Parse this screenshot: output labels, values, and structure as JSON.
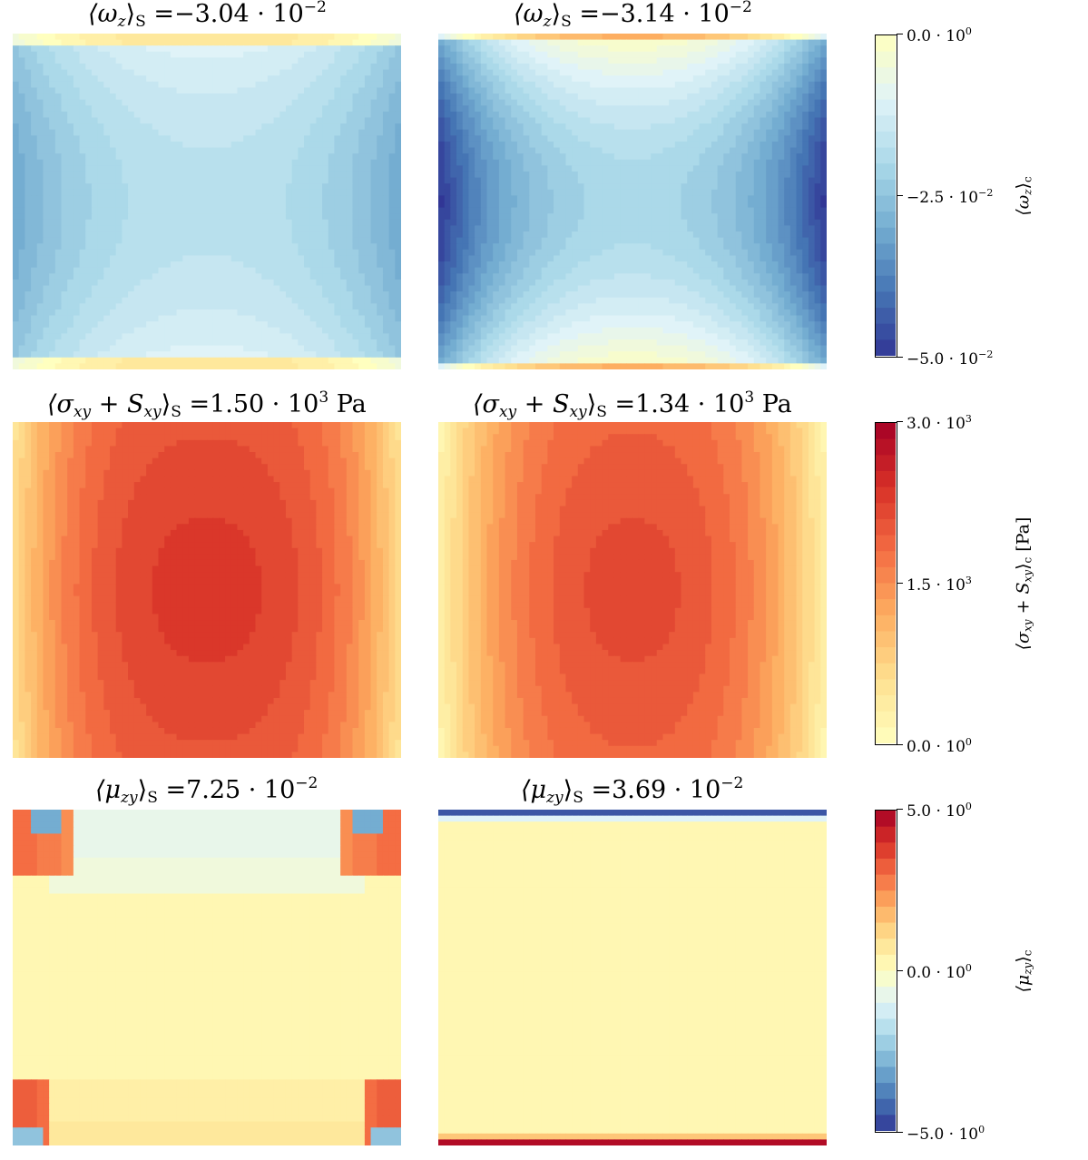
{
  "chart_data": [
    {
      "type": "heatmap",
      "row": 1,
      "panels": [
        {
          "title_quantity": "⟨ω",
          "title_sub": "z",
          "title_close": "⟩",
          "title_S": "S",
          "title_value": " =−3.04 · 10",
          "title_exp": "−2",
          "title_unit": "",
          "mean": -0.0304,
          "pattern": "vort-left"
        },
        {
          "title_quantity": "⟨ω",
          "title_sub": "z",
          "title_close": "⟩",
          "title_S": "S",
          "title_value": " =−3.14 · 10",
          "title_exp": "−2",
          "title_unit": "",
          "mean": -0.0314,
          "pattern": "vort-right"
        }
      ],
      "colorbar": {
        "label_quantity": "⟨ω",
        "label_sub": "z",
        "label_close": "⟩",
        "label_c": "c",
        "label_unit": "",
        "ticks": [
          {
            "mant": "0.0 · 10",
            "exp": "0",
            "value": 0.0
          },
          {
            "mant": "−2.5 · 10",
            "exp": "−2",
            "value": -0.025
          },
          {
            "mant": "−5.0 · 10",
            "exp": "−2",
            "value": -0.05
          }
        ],
        "range": [
          -0.05,
          0.0
        ],
        "colormap": "RdYlBu_r (lower half)"
      }
    },
    {
      "type": "heatmap",
      "row": 2,
      "panels": [
        {
          "title_quantity": "⟨σ",
          "title_sub": "xy",
          "title_plus": " + S",
          "title_sub2": "xy",
          "title_close": "⟩",
          "title_S": "S",
          "title_value": " =1.50 · 10",
          "title_exp": "3",
          "title_unit": " Pa",
          "mean": 1500,
          "pattern": "stress-left"
        },
        {
          "title_quantity": "⟨σ",
          "title_sub": "xy",
          "title_plus": " + S",
          "title_sub2": "xy",
          "title_close": "⟩",
          "title_S": "S",
          "title_value": " =1.34 · 10",
          "title_exp": "3",
          "title_unit": " Pa",
          "mean": 1340,
          "pattern": "stress-right"
        }
      ],
      "colorbar": {
        "label_quantity": "⟨σ",
        "label_sub": "xy",
        "label_plus": " + S",
        "label_sub2": "xy",
        "label_close": "⟩",
        "label_c": "c",
        "label_unit": " [Pa]",
        "ticks": [
          {
            "mant": "3.0 · 10",
            "exp": "3",
            "value": 3000
          },
          {
            "mant": "1.5 · 10",
            "exp": "3",
            "value": 1500
          },
          {
            "mant": "0.0 · 10",
            "exp": "0",
            "value": 0
          }
        ],
        "range": [
          0,
          3000
        ],
        "colormap": "RdYlBu_r (upper half)"
      }
    },
    {
      "type": "heatmap",
      "row": 3,
      "panels": [
        {
          "title_quantity": "⟨μ",
          "title_sub": "zy",
          "title_close": "⟩",
          "title_S": "S",
          "title_value": " =7.25 · 10",
          "title_exp": "−2",
          "title_unit": "",
          "mean": 0.0725,
          "pattern": "couple-left"
        },
        {
          "title_quantity": "⟨μ",
          "title_sub": "zy",
          "title_close": "⟩",
          "title_S": "S",
          "title_value": " =3.69 · 10",
          "title_exp": "−2",
          "title_unit": "",
          "mean": 0.0369,
          "pattern": "couple-right"
        }
      ],
      "colorbar": {
        "label_quantity": "⟨μ",
        "label_sub": "zy",
        "label_close": "⟩",
        "label_c": "c",
        "label_unit": "",
        "ticks": [
          {
            "mant": "5.0 · 10",
            "exp": "0",
            "value": 5.0
          },
          {
            "mant": "0.0 · 10",
            "exp": "0",
            "value": 0.0
          },
          {
            "mant": "−5.0 · 10",
            "exp": "0",
            "value": -5.0
          }
        ],
        "range": [
          -5.0,
          5.0
        ],
        "colormap": "RdYlBu_r"
      }
    }
  ]
}
